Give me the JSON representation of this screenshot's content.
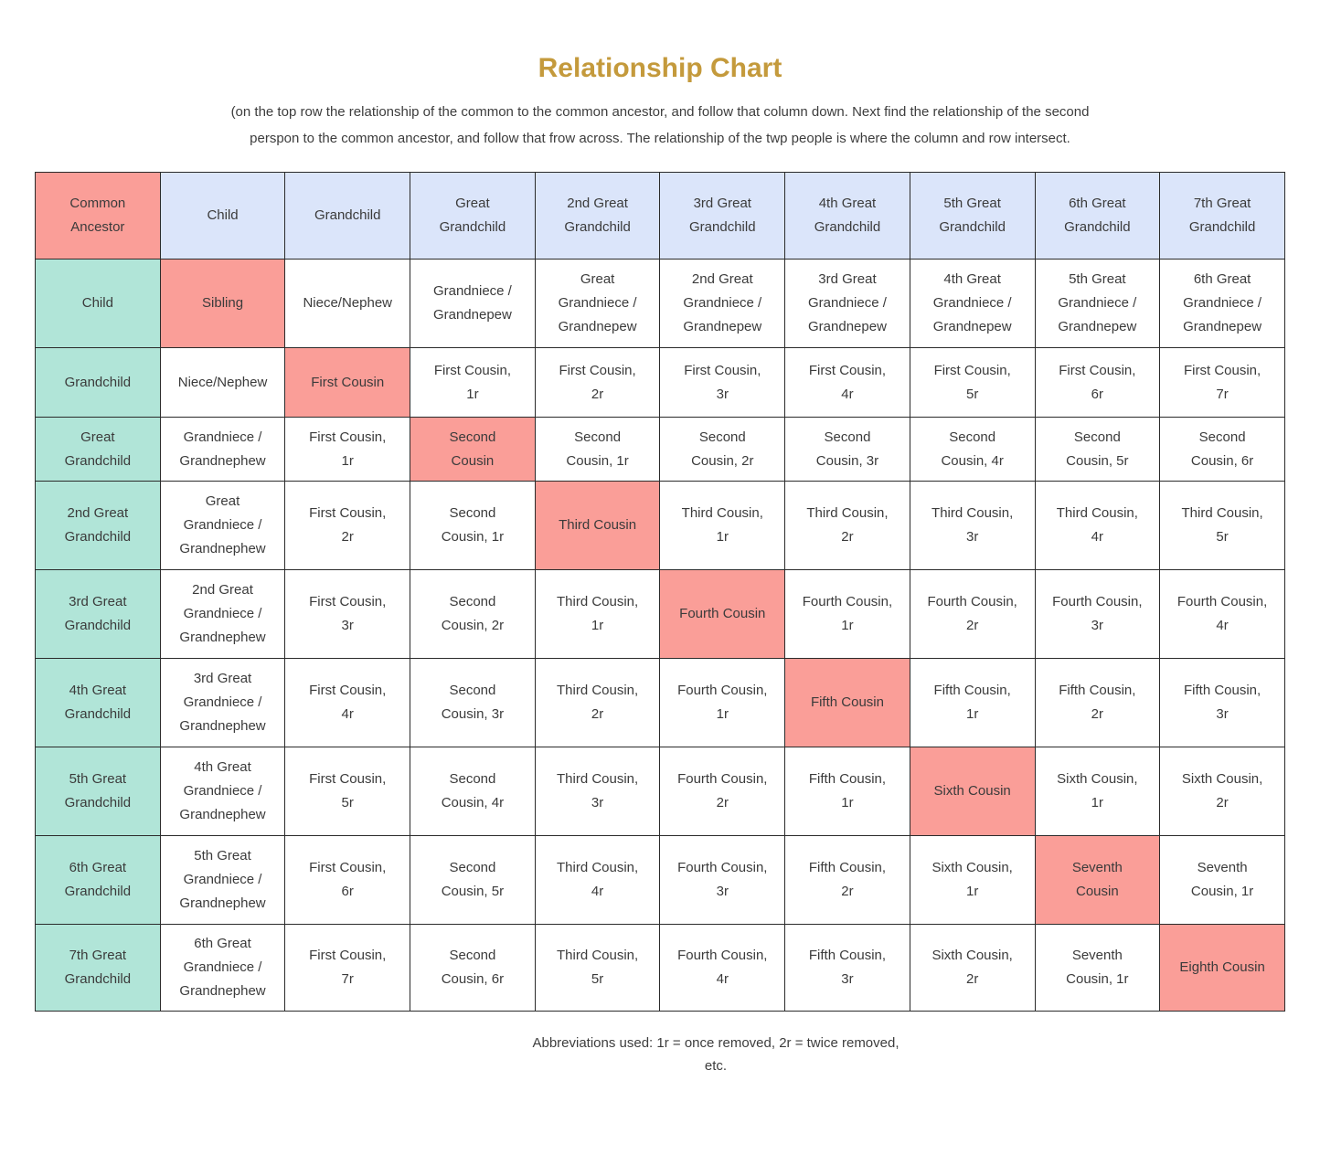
{
  "page": {
    "title": "Relationship Chart",
    "subtitle": "(on the top row the relationship of the common to the common ancestor, and follow  that column down. Next find the relationship of the second perspon to the common ancestor, and follow that frow across. The relationship of  the twp people is where the column and row intersect.",
    "footer": {
      "line1": "Abbreviations used: 1r = once removed, 2r = twice removed,",
      "line2": "etc."
    }
  },
  "colors": {
    "title_text": "#C49A3C",
    "header_row_bg": "#DBE5FA",
    "row_label_bg": "#B1E5D8",
    "diagonal_highlight_bg": "#FA9E98",
    "cell_bg": "#FFFFFF",
    "border": "#2B2B2B",
    "body_text": "#3B3B3B"
  },
  "table": {
    "header_row": [
      "Common Ancestor",
      "Child",
      "Grandchild",
      "Great Grandchild",
      "2nd Great Grandchild",
      "3rd Great Grandchild",
      "4th Great Grandchild",
      "5th Great Grandchild",
      "6th Great Grandchild",
      "7th Great Grandchild"
    ],
    "data_rows": [
      [
        "Child",
        "Sibling",
        "Niece/Nephew",
        "Grandniece / Grandnepew",
        "Great Grandniece / Grandnepew",
        "2nd Great Grandniece / Grandnepew",
        "3rd Great Grandniece / Grandnepew",
        "4th Great Grandniece / Grandnepew",
        "5th Great Grandniece / Grandnepew",
        "6th Great Grandniece / Grandnepew"
      ],
      [
        "Grandchild",
        "Niece/Nephew",
        "First Cousin",
        "First Cousin, 1r",
        "First Cousin, 2r",
        "First Cousin, 3r",
        "First Cousin, 4r",
        "First Cousin, 5r",
        "First Cousin, 6r",
        "First Cousin, 7r"
      ],
      [
        "Great Grandchild",
        "Grandniece / Grandnephew",
        "First Cousin, 1r",
        "Second Cousin",
        "Second Cousin, 1r",
        "Second Cousin, 2r",
        "Second Cousin, 3r",
        "Second Cousin, 4r",
        "Second Cousin, 5r",
        "Second Cousin, 6r"
      ],
      [
        "2nd Great Grandchild",
        "Great Grandniece / Grandnephew",
        "First Cousin, 2r",
        "Second Cousin, 1r",
        "Third Cousin",
        "Third Cousin, 1r",
        "Third Cousin, 2r",
        "Third Cousin, 3r",
        "Third Cousin, 4r",
        "Third Cousin, 5r"
      ],
      [
        "3rd Great Grandchild",
        "2nd Great Grandniece / Grandnephew",
        "First Cousin, 3r",
        "Second Cousin, 2r",
        "Third Cousin, 1r",
        "Fourth Cousin",
        "Fourth Cousin, 1r",
        "Fourth Cousin, 2r",
        "Fourth Cousin, 3r",
        "Fourth Cousin, 4r"
      ],
      [
        "4th Great Grandchild",
        "3rd Great Grandniece / Grandnephew",
        "First Cousin, 4r",
        "Second Cousin, 3r",
        "Third Cousin, 2r",
        "Fourth Cousin, 1r",
        "Fifth Cousin",
        "Fifth Cousin, 1r",
        "Fifth Cousin, 2r",
        "Fifth Cousin, 3r"
      ],
      [
        "5th Great Grandchild",
        "4th Great Grandniece / Grandnephew",
        "First Cousin, 5r",
        "Second Cousin, 4r",
        "Third Cousin, 3r",
        "Fourth Cousin, 2r",
        "Fifth Cousin, 1r",
        "Sixth Cousin",
        "Sixth Cousin, 1r",
        "Sixth Cousin, 2r"
      ],
      [
        "6th Great Grandchild",
        "5th Great Grandniece / Grandnephew",
        "First Cousin, 6r",
        "Second Cousin, 5r",
        "Third Cousin, 4r",
        "Fourth Cousin, 3r",
        "Fifth Cousin, 2r",
        "Sixth Cousin, 1r",
        "Seventh Cousin",
        "Seventh Cousin, 1r"
      ],
      [
        "7th Great Grandchild",
        "6th Great Grandniece / Grandnephew",
        "First Cousin, 7r",
        "Second Cousin, 6r",
        "Third Cousin, 5r",
        "Fourth Cousin, 4r",
        "Fifth Cousin, 3r",
        "Sixth Cousin, 2r",
        "Seventh Cousin, 1r",
        "Eighth Cousin"
      ]
    ]
  }
}
